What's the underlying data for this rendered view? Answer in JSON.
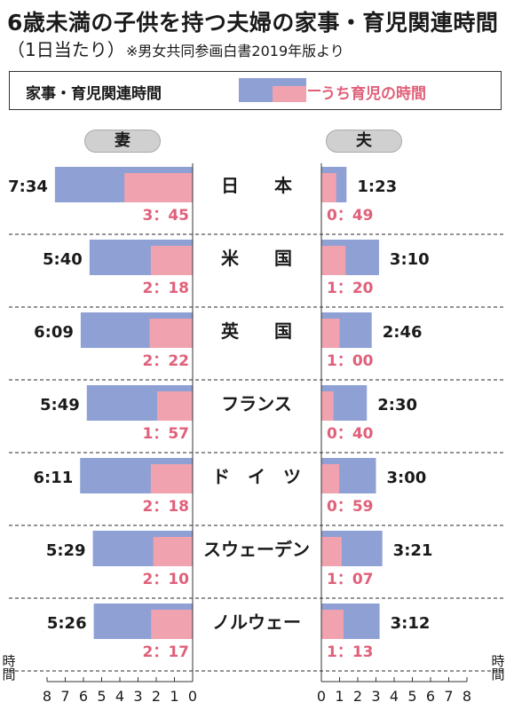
{
  "header": {
    "title": "6歳未満の子供を持つ夫婦の家事・育児関連時間",
    "subtitle": "（1日当たり）",
    "source": "※男女共同参画白書2019年版より"
  },
  "legend": {
    "total_label": "家事・育児関連時間",
    "child_label": "うち育児の時間"
  },
  "columns": {
    "wife_label": "妻",
    "husband_label": "夫"
  },
  "axis": {
    "unit_left": "（時間）",
    "unit_right": "（時間）"
  },
  "colors": {
    "total": "#8fa0d5",
    "child": "#f0a2ae",
    "child_text": "#e0607a"
  },
  "chart_data": {
    "type": "bar",
    "categories": [
      "日　　本",
      "米　　国",
      "英　　国",
      "フランス",
      "ド　イ　ツ",
      "スウェーデン",
      "ノルウェー"
    ],
    "series": [
      {
        "name": "家事・育児関連時間",
        "group": "妻",
        "values": [
          7.567,
          5.667,
          6.15,
          5.817,
          6.183,
          5.483,
          5.433
        ],
        "labels": [
          "7:34",
          "5:40",
          "6:09",
          "5:49",
          "6:11",
          "5:29",
          "5:26"
        ]
      },
      {
        "name": "うち育児の時間",
        "group": "妻",
        "values": [
          3.75,
          2.3,
          2.367,
          1.95,
          2.3,
          2.167,
          2.283
        ],
        "labels": [
          "3：45",
          "2：18",
          "2：22",
          "1：57",
          "2：18",
          "2：10",
          "2：17"
        ]
      },
      {
        "name": "家事・育児関連時間",
        "group": "夫",
        "values": [
          1.383,
          3.167,
          2.767,
          2.5,
          3.0,
          3.35,
          3.2
        ],
        "labels": [
          "1:23",
          "3:10",
          "2:46",
          "2:30",
          "3:00",
          "3:21",
          "3:12"
        ]
      },
      {
        "name": "うち育児の時間",
        "group": "夫",
        "values": [
          0.817,
          1.333,
          1.0,
          0.667,
          0.983,
          1.117,
          1.217
        ],
        "labels": [
          "0：49",
          "1：20",
          "1：00",
          "0：40",
          "0：59",
          "1：07",
          "1：13"
        ]
      }
    ],
    "xlim": [
      0,
      8
    ],
    "ticks_wife": [
      "8",
      "7",
      "6",
      "5",
      "4",
      "3",
      "2",
      "1",
      "0"
    ],
    "ticks_husband": [
      "0",
      "1",
      "2",
      "3",
      "4",
      "5",
      "6",
      "7",
      "8"
    ]
  }
}
